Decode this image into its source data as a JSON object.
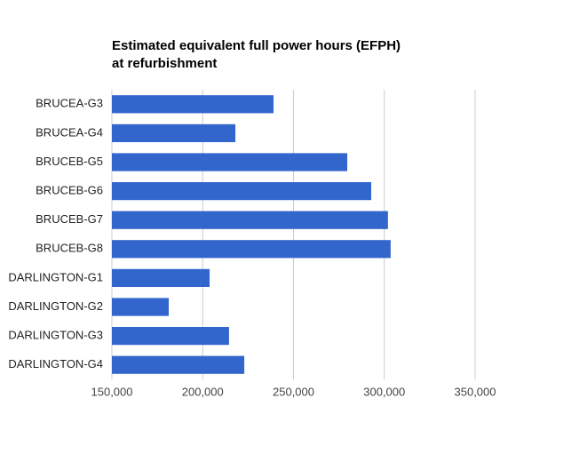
{
  "chart_data": {
    "type": "bar",
    "orientation": "horizontal",
    "title": "Estimated equivalent full power hours (EFPH) at refurbishment",
    "categories": [
      "BRUCEA-G3",
      "BRUCEA-G4",
      "BRUCEB-G5",
      "BRUCEB-G6",
      "BRUCEB-G7",
      "BRUCEB-G8",
      "DARLINGTON-G1",
      "DARLINGTON-G2",
      "DARLINGTON-G3",
      "DARLINGTON-G4"
    ],
    "values": [
      239000,
      218000,
      279600,
      292800,
      302000,
      303500,
      203800,
      181300,
      214500,
      222900
    ],
    "color": "#3366cc",
    "xlim": [
      150000,
      350000
    ],
    "xticks": [
      {
        "value": 150000,
        "label": "150,000"
      },
      {
        "value": 200000,
        "label": "200,000"
      },
      {
        "value": 250000,
        "label": "250,000"
      },
      {
        "value": 300000,
        "label": "300,000"
      },
      {
        "value": 350000,
        "label": "350,000"
      }
    ],
    "grid": true
  }
}
